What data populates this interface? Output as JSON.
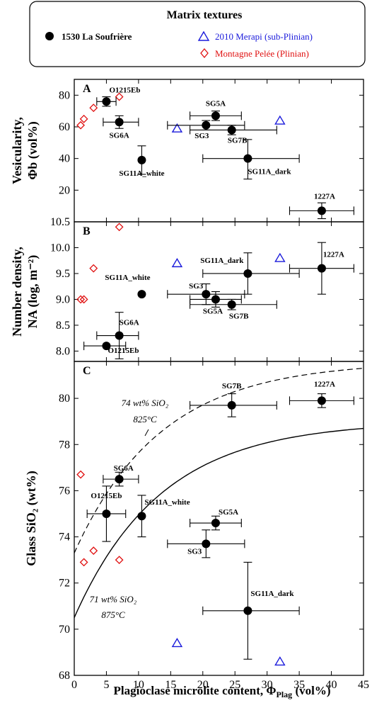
{
  "legend": {
    "title": "Matrix textures",
    "entries": [
      {
        "label": "1530 La Soufrière",
        "marker": "filled-circle",
        "color": "#000000"
      },
      {
        "label": "2010 Merapi (sub-Plinian)",
        "marker": "open-triangle",
        "color": "#1a1adb"
      },
      {
        "label": "Montagne Pelée (Plinian)",
        "marker": "open-diamond",
        "color": "#e01010"
      }
    ]
  },
  "x_axis": {
    "label": "Plagioclase microlite content, Φ",
    "label_sub": "Plag",
    "label_unit": " (vol%)",
    "ticks": [
      "0",
      "5",
      "10",
      "15",
      "20",
      "25",
      "30",
      "35",
      "40",
      "45"
    ]
  },
  "chart_data": [
    {
      "type": "scatter",
      "panel": "A",
      "ylabel_line1": "Vesicularity,",
      "ylabel_line2": "Φb (vol%)",
      "xlim": [
        0,
        45
      ],
      "ylim": [
        0,
        90
      ],
      "yticks": [
        "20",
        "40",
        "60",
        "80"
      ],
      "soufriere": [
        {
          "label": "O1215Eb",
          "x": 5.0,
          "y": 76,
          "xerr": [
            3.5,
            6.5
          ],
          "yerr": [
            73,
            79
          ]
        },
        {
          "label": "SG6A",
          "x": 7.0,
          "y": 63,
          "xerr": [
            4.5,
            10
          ],
          "yerr": [
            59,
            67
          ]
        },
        {
          "label": "SG11A_white",
          "x": 10.5,
          "y": 39,
          "xerr": null,
          "yerr": [
            30,
            48
          ]
        },
        {
          "label": "SG5A",
          "x": 22.0,
          "y": 67,
          "xerr": [
            18,
            26
          ],
          "yerr": [
            64,
            70
          ]
        },
        {
          "label": "SG3",
          "x": 20.5,
          "y": 61,
          "xerr": [
            14.5,
            26.5
          ],
          "yerr": [
            58,
            64
          ]
        },
        {
          "label": "SG7B",
          "x": 24.5,
          "y": 58,
          "xerr": [
            18,
            31.5
          ],
          "yerr": [
            55,
            61
          ]
        },
        {
          "label": "SG11A_dark",
          "x": 27.0,
          "y": 40,
          "xerr": [
            20,
            35
          ],
          "yerr": [
            27,
            52
          ]
        },
        {
          "label": "1227A",
          "x": 38.5,
          "y": 7,
          "xerr": [
            33.5,
            43.5
          ],
          "yerr": [
            2,
            12
          ]
        }
      ],
      "merapi": [
        {
          "x": 16,
          "y": 59
        },
        {
          "x": 32,
          "y": 64
        }
      ],
      "pelee": [
        {
          "x": 7,
          "y": 79
        },
        {
          "x": 3,
          "y": 72
        },
        {
          "x": 1.5,
          "y": 65
        },
        {
          "x": 1,
          "y": 61
        }
      ]
    },
    {
      "type": "scatter",
      "panel": "B",
      "ylabel_line1": "Number density,",
      "ylabel_line2": "NA (log, m⁻²)",
      "xlim": [
        0,
        45
      ],
      "ylim": [
        7.8,
        10.5
      ],
      "yticks": [
        "8.0",
        "8.5",
        "9.0",
        "9.5",
        "10.0",
        "10.5"
      ],
      "soufriere": [
        {
          "label": "SG11A_white",
          "x": 10.5,
          "y": 9.1,
          "xerr": null,
          "yerr": null
        },
        {
          "label": "SG6A",
          "x": 7.0,
          "y": 8.3,
          "xerr": [
            3.5,
            10
          ],
          "yerr": [
            7.85,
            8.75
          ]
        },
        {
          "label": "O1215Eb",
          "x": 5.0,
          "y": 8.1,
          "xerr": [
            1.5,
            8
          ],
          "yerr": null
        },
        {
          "label": "SG3",
          "x": 20.5,
          "y": 9.1,
          "xerr": [
            14.5,
            26.5
          ],
          "yerr": [
            8.9,
            9.3
          ]
        },
        {
          "label": "SG5A",
          "x": 22.0,
          "y": 9.0,
          "xerr": [
            18,
            26
          ],
          "yerr": [
            8.85,
            9.15
          ]
        },
        {
          "label": "SG7B",
          "x": 24.5,
          "y": 8.9,
          "xerr": [
            18,
            31.5
          ],
          "yerr": [
            8.8,
            9.0
          ]
        },
        {
          "label": "SG11A_dark",
          "x": 27.0,
          "y": 9.5,
          "xerr": [
            20,
            35
          ],
          "yerr": [
            9.1,
            9.9
          ]
        },
        {
          "label": "1227A",
          "x": 38.5,
          "y": 9.6,
          "xerr": [
            33.5,
            43.5
          ],
          "yerr": [
            9.1,
            10.1
          ]
        }
      ],
      "merapi": [
        {
          "x": 16,
          "y": 9.7
        },
        {
          "x": 32,
          "y": 9.8
        }
      ],
      "pelee": [
        {
          "x": 7,
          "y": 10.4
        },
        {
          "x": 3,
          "y": 9.6
        },
        {
          "x": 1.5,
          "y": 9.0
        },
        {
          "x": 1,
          "y": 9.0
        }
      ]
    },
    {
      "type": "scatter",
      "panel": "C",
      "ylabel_line1": "Glass SiO₂ (wt%)",
      "xlim": [
        0,
        45
      ],
      "ylim": [
        68,
        81.6
      ],
      "yticks": [
        "68",
        "70",
        "72",
        "74",
        "76",
        "78",
        "80"
      ],
      "soufriere": [
        {
          "label": "SG7B",
          "x": 24.5,
          "y": 79.7,
          "xerr": [
            18,
            31.5
          ],
          "yerr": [
            79.2,
            80.2
          ]
        },
        {
          "label": "1227A",
          "x": 38.5,
          "y": 79.9,
          "xerr": [
            33.5,
            43.5
          ],
          "yerr": [
            79.6,
            80.2
          ]
        },
        {
          "label": "SG6A",
          "x": 7.0,
          "y": 76.5,
          "xerr": [
            4.5,
            10
          ],
          "yerr": [
            76.2,
            76.8
          ]
        },
        {
          "label": "O1215Eb",
          "x": 5.0,
          "y": 75.0,
          "xerr": [
            2,
            8
          ],
          "yerr": [
            73.8,
            76.2
          ]
        },
        {
          "label": "SG11A_white",
          "x": 10.5,
          "y": 74.9,
          "xerr": null,
          "yerr": [
            74.0,
            75.8
          ]
        },
        {
          "label": "SG5A",
          "x": 22.0,
          "y": 74.6,
          "xerr": [
            18,
            26
          ],
          "yerr": [
            74.3,
            74.9
          ]
        },
        {
          "label": "SG3",
          "x": 20.5,
          "y": 73.7,
          "xerr": [
            14.5,
            26.5
          ],
          "yerr": [
            73.1,
            74.3
          ]
        },
        {
          "label": "SG11A_dark",
          "x": 27.0,
          "y": 70.8,
          "xerr": [
            20,
            35
          ],
          "yerr": [
            68.7,
            72.9
          ]
        }
      ],
      "merapi": [
        {
          "x": 16,
          "y": 69.4
        },
        {
          "x": 32,
          "y": 68.6
        }
      ],
      "pelee": [
        {
          "x": 1,
          "y": 76.7
        },
        {
          "x": 3,
          "y": 73.4
        },
        {
          "x": 1.5,
          "y": 72.9
        },
        {
          "x": 7,
          "y": 73.0
        }
      ],
      "curves": [
        {
          "label_line1": "74 wt% SiO₂",
          "label_line2": "825°C",
          "style": "dashed"
        },
        {
          "label_line1": "71 wt% SiO₂",
          "label_line2": "875°C",
          "style": "solid"
        }
      ]
    }
  ]
}
